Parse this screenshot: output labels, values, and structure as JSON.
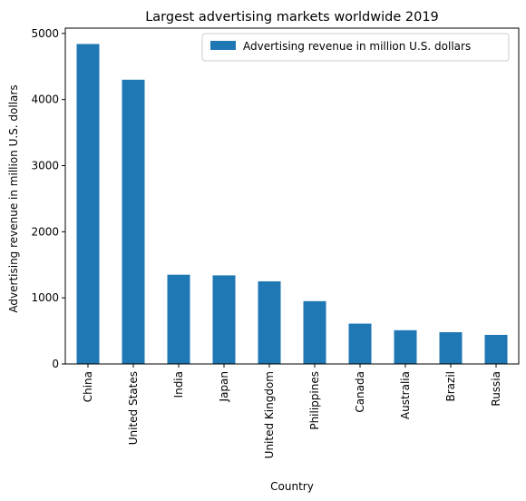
{
  "chart_data": {
    "type": "bar",
    "title": "Largest advertising markets worldwide 2019",
    "xlabel": "Country",
    "ylabel": "Advertising revenue in million U.S. dollars",
    "categories": [
      "China",
      "United States",
      "India",
      "Japan",
      "United Kingdom",
      "Philippines",
      "Canada",
      "Australia",
      "Brazil",
      "Russia"
    ],
    "series": [
      {
        "name": "Advertising revenue in million U.S. dollars",
        "color": "#1f77b4",
        "values": [
          4840,
          4300,
          1350,
          1340,
          1250,
          950,
          610,
          510,
          480,
          440
        ]
      }
    ],
    "ylim": [
      0,
      5080
    ],
    "yticks": [
      0,
      1000,
      2000,
      3000,
      4000,
      5000
    ],
    "grid": false,
    "legend_position": "top-right"
  }
}
